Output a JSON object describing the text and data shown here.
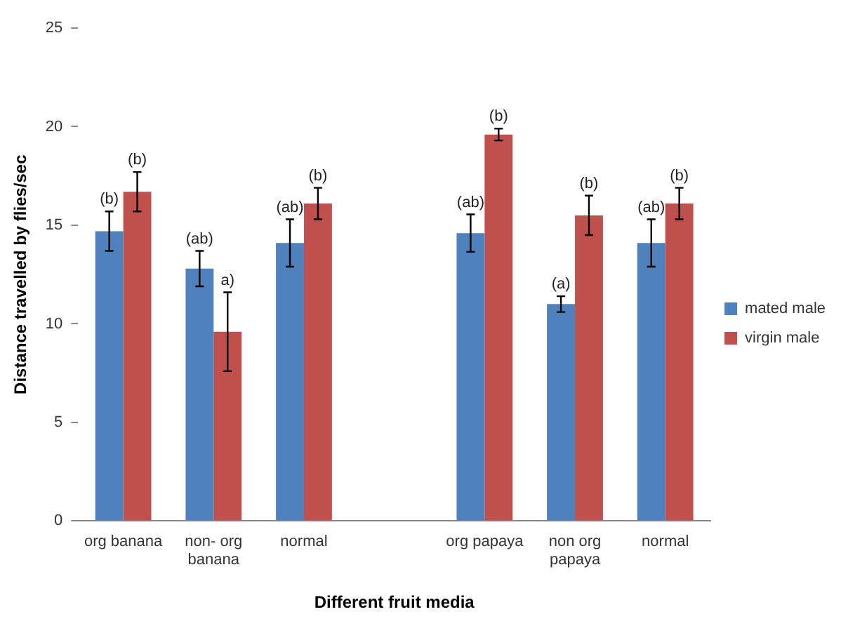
{
  "chart_data": {
    "type": "bar",
    "xlabel": "Different fruit media",
    "ylabel": "Distance travelled by flies/sec",
    "categories": [
      "org banana",
      "non- org\nbanana",
      "normal",
      null,
      "org papaya",
      "non org\npapaya",
      "normal"
    ],
    "series": [
      {
        "name": "mated male",
        "color": "#4f81bd",
        "values": [
          14.7,
          12.8,
          14.1,
          null,
          14.6,
          11.0,
          14.1
        ],
        "errors": [
          1.0,
          0.9,
          1.2,
          null,
          0.95,
          0.4,
          1.2
        ],
        "value_labels": [
          "(b)",
          "(ab)",
          "(ab)",
          null,
          "(ab)",
          "(a)",
          "(ab)"
        ]
      },
      {
        "name": "virgin male",
        "color": "#c0504d",
        "values": [
          16.7,
          9.6,
          16.1,
          null,
          19.6,
          15.5,
          16.1
        ],
        "errors": [
          1.0,
          2.0,
          0.8,
          null,
          0.3,
          1.0,
          0.8
        ],
        "value_labels": [
          "(b)",
          "a)",
          "(b)",
          null,
          "(b)",
          "(b)",
          "(b)"
        ]
      }
    ],
    "ylim": [
      0,
      25
    ],
    "yticks": [
      0,
      5,
      10,
      15,
      20,
      25
    ],
    "grid": false,
    "legend": "right"
  }
}
